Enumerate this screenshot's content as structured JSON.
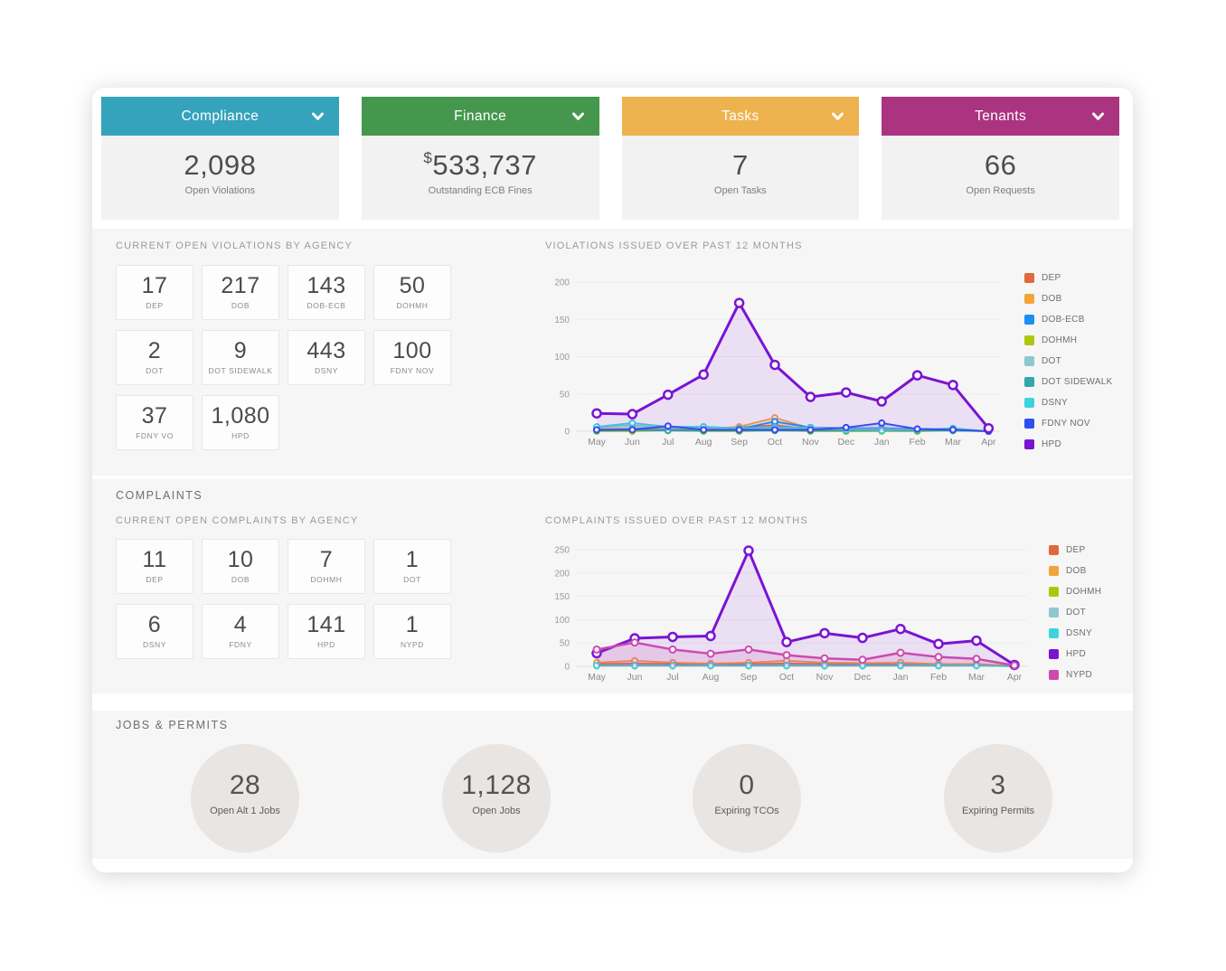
{
  "summary_cards": [
    {
      "title": "Compliance",
      "value": "2,098",
      "label": "Open Violations",
      "color": "#36a3bc",
      "icon": "chevron-down-icon"
    },
    {
      "title": "Finance",
      "value": "$533,737",
      "label": "Outstanding ECB Fines",
      "color": "#46974e",
      "icon": "chevron-down-icon"
    },
    {
      "title": "Tasks",
      "value": "7",
      "label": "Open Tasks",
      "color": "#eeb24e",
      "icon": "chevron-down-icon"
    },
    {
      "title": "Tenants",
      "value": "66",
      "label": "Open Requests",
      "color": "#ab3480",
      "icon": "chevron-down-icon"
    }
  ],
  "violations": {
    "section_title": "CURRENT OPEN VIOLATIONS BY AGENCY",
    "stats": [
      {
        "value": "17",
        "label": "DEP"
      },
      {
        "value": "217",
        "label": "DOB"
      },
      {
        "value": "143",
        "label": "DOB-ECB"
      },
      {
        "value": "50",
        "label": "DOHMH"
      },
      {
        "value": "2",
        "label": "DOT"
      },
      {
        "value": "9",
        "label": "DOT SIDEWALK"
      },
      {
        "value": "443",
        "label": "DSNY"
      },
      {
        "value": "100",
        "label": "FDNY NOV"
      },
      {
        "value": "37",
        "label": "FDNY VO"
      },
      {
        "value": "1,080",
        "label": "HPD"
      }
    ]
  },
  "complaints": {
    "heading": "COMPLAINTS",
    "section_title": "CURRENT OPEN COMPLAINTS BY AGENCY",
    "stats": [
      {
        "value": "11",
        "label": "DEP"
      },
      {
        "value": "10",
        "label": "DOB"
      },
      {
        "value": "7",
        "label": "DOHMH"
      },
      {
        "value": "1",
        "label": "DOT"
      },
      {
        "value": "6",
        "label": "DSNY"
      },
      {
        "value": "4",
        "label": "FDNY"
      },
      {
        "value": "141",
        "label": "HPD"
      },
      {
        "value": "1",
        "label": "NYPD"
      }
    ]
  },
  "jobs_permits": {
    "heading": "JOBS & PERMITS",
    "stats": [
      {
        "value": "28",
        "label": "Open Alt 1 Jobs"
      },
      {
        "value": "1,128",
        "label": "Open Jobs"
      },
      {
        "value": "0",
        "label": "Expiring TCOs"
      },
      {
        "value": "3",
        "label": "Expiring Permits"
      }
    ]
  },
  "chart_data": [
    {
      "type": "line",
      "title": "VIOLATIONS ISSUED OVER PAST 12 MONTHS",
      "categories": [
        "May",
        "Jun",
        "Jul",
        "Aug",
        "Sep",
        "Oct",
        "Nov",
        "Dec",
        "Jan",
        "Feb",
        "Mar",
        "Apr"
      ],
      "ylim": [
        0,
        200
      ],
      "ytick_step": 50,
      "grid": true,
      "legend_position": "right",
      "series": [
        {
          "name": "DEP",
          "color": "#e0693b",
          "values": [
            2,
            3,
            3,
            2,
            5,
            8,
            3,
            2,
            2,
            2,
            1,
            0
          ],
          "line_width": 1.8,
          "point_radius": 3,
          "fill_opacity": 0.12
        },
        {
          "name": "DOB",
          "color": "#f2a43a",
          "values": [
            3,
            4,
            4,
            3,
            6,
            18,
            4,
            3,
            2,
            1,
            3,
            0
          ],
          "line_width": 1.8,
          "point_radius": 3,
          "fill_opacity": 0.15
        },
        {
          "name": "DOB-ECB",
          "color": "#1d8ff2",
          "values": [
            2,
            3,
            6,
            2,
            3,
            13,
            5,
            4,
            4,
            3,
            3,
            0
          ],
          "line_width": 1.8,
          "point_radius": 3,
          "fill_opacity": 0.12
        },
        {
          "name": "DOHMH",
          "color": "#aec70d",
          "values": [
            0,
            0,
            1,
            0,
            0,
            1,
            0,
            0,
            0,
            0,
            1,
            0
          ],
          "line_width": 1.8,
          "point_radius": 3,
          "fill_opacity": 0.12
        },
        {
          "name": "DOT",
          "color": "#90c6cf",
          "values": [
            5,
            8,
            4,
            5,
            3,
            3,
            3,
            3,
            3,
            2,
            3,
            0
          ],
          "line_width": 1.8,
          "point_radius": 3,
          "fill_opacity": 0.18
        },
        {
          "name": "DOT SIDEWALK",
          "color": "#33a6aa",
          "values": [
            1,
            2,
            1,
            1,
            1,
            1,
            1,
            1,
            1,
            1,
            1,
            0
          ],
          "line_width": 1.8,
          "point_radius": 3,
          "fill_opacity": 0.12
        },
        {
          "name": "DSNY",
          "color": "#3bd4de",
          "values": [
            6,
            11,
            6,
            6,
            4,
            5,
            5,
            2,
            1,
            2,
            4,
            0
          ],
          "line_width": 1.8,
          "point_radius": 3,
          "fill_opacity": 0.18
        },
        {
          "name": "FDNY NOV",
          "color": "#2b4ff2",
          "values": [
            2,
            2,
            7,
            2,
            2,
            2,
            2,
            5,
            11,
            3,
            2,
            0
          ],
          "line_width": 1.8,
          "point_radius": 3,
          "fill_opacity": 0.12
        },
        {
          "name": "HPD",
          "color": "#7b13d3",
          "values": [
            24,
            23,
            49,
            76,
            172,
            89,
            46,
            52,
            40,
            75,
            62,
            4
          ],
          "line_width": 3,
          "point_radius": 4.5,
          "fill_opacity": 0.1
        }
      ]
    },
    {
      "type": "line",
      "title": "COMPLAINTS ISSUED OVER PAST 12 MONTHS",
      "categories": [
        "May",
        "Jun",
        "Jul",
        "Aug",
        "Sep",
        "Oct",
        "Nov",
        "Dec",
        "Jan",
        "Feb",
        "Mar",
        "Apr"
      ],
      "ylim": [
        0,
        250
      ],
      "ytick_step": 50,
      "grid": true,
      "legend_position": "right",
      "series": [
        {
          "name": "DEP",
          "color": "#e0693b",
          "values": [
            5,
            6,
            5,
            4,
            5,
            6,
            5,
            4,
            4,
            3,
            3,
            0
          ],
          "line_width": 1.8,
          "point_radius": 3,
          "fill_opacity": 0.12
        },
        {
          "name": "DOB",
          "color": "#f2a43a",
          "values": [
            8,
            12,
            8,
            6,
            8,
            12,
            8,
            7,
            8,
            5,
            5,
            1
          ],
          "line_width": 1.8,
          "point_radius": 3,
          "fill_opacity": 0.15
        },
        {
          "name": "DOHMH",
          "color": "#aec70d",
          "values": [
            1,
            1,
            1,
            1,
            1,
            1,
            1,
            1,
            1,
            1,
            2,
            1
          ],
          "line_width": 1.8,
          "point_radius": 3,
          "fill_opacity": 0.12
        },
        {
          "name": "DOT",
          "color": "#90c6cf",
          "values": [
            1,
            1,
            1,
            1,
            1,
            1,
            1,
            1,
            1,
            1,
            1,
            0
          ],
          "line_width": 1.8,
          "point_radius": 3,
          "fill_opacity": 0.12
        },
        {
          "name": "DSNY",
          "color": "#3bd4de",
          "values": [
            2,
            2,
            2,
            2,
            2,
            2,
            2,
            2,
            2,
            2,
            2,
            0
          ],
          "line_width": 1.8,
          "point_radius": 3,
          "fill_opacity": 0.12
        },
        {
          "name": "HPD",
          "color": "#7b13d3",
          "values": [
            28,
            60,
            63,
            65,
            248,
            52,
            71,
            61,
            80,
            48,
            55,
            3
          ],
          "line_width": 3,
          "point_radius": 4.5,
          "fill_opacity": 0.1
        },
        {
          "name": "NYPD",
          "color": "#cc4aaf",
          "values": [
            36,
            51,
            36,
            27,
            36,
            24,
            17,
            14,
            29,
            20,
            16,
            2
          ],
          "line_width": 2.5,
          "point_radius": 3.5,
          "fill_opacity": 0.15
        }
      ]
    }
  ]
}
